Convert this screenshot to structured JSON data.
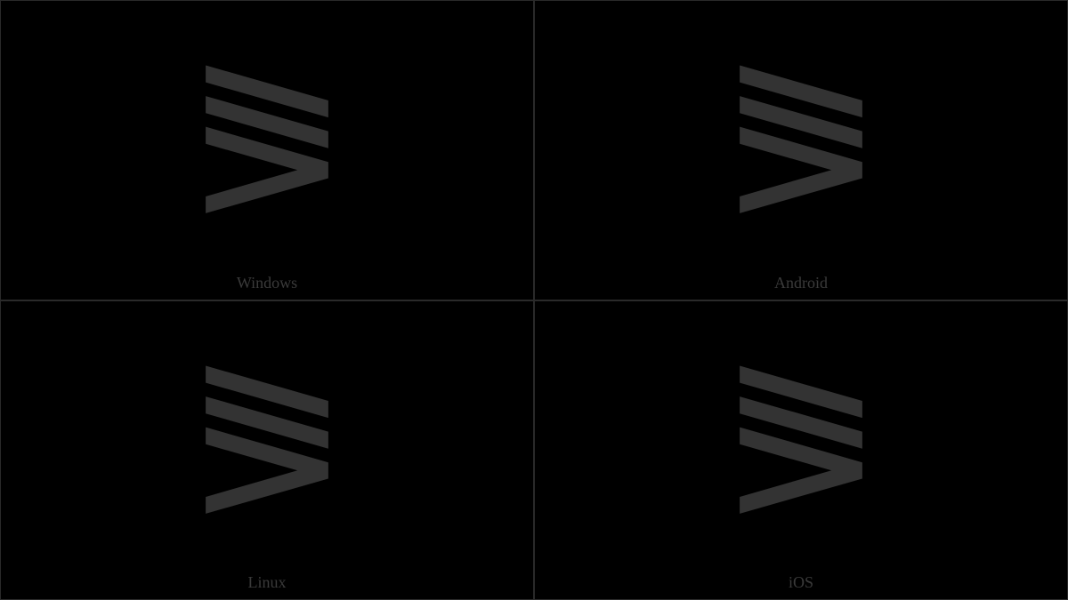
{
  "grid": {
    "background_color": "#000000",
    "border_color": "#2a2a2a",
    "glyph_color": "#333333",
    "label_color": "#3a3a3a",
    "label_fontsize": 18,
    "glyph_fontsize": 220,
    "cells": [
      {
        "glyph": "⪜",
        "label": "Windows"
      },
      {
        "glyph": "⪜",
        "label": "Android"
      },
      {
        "glyph": "⪜",
        "label": "Linux"
      },
      {
        "glyph": "⪜",
        "label": "iOS"
      }
    ]
  }
}
